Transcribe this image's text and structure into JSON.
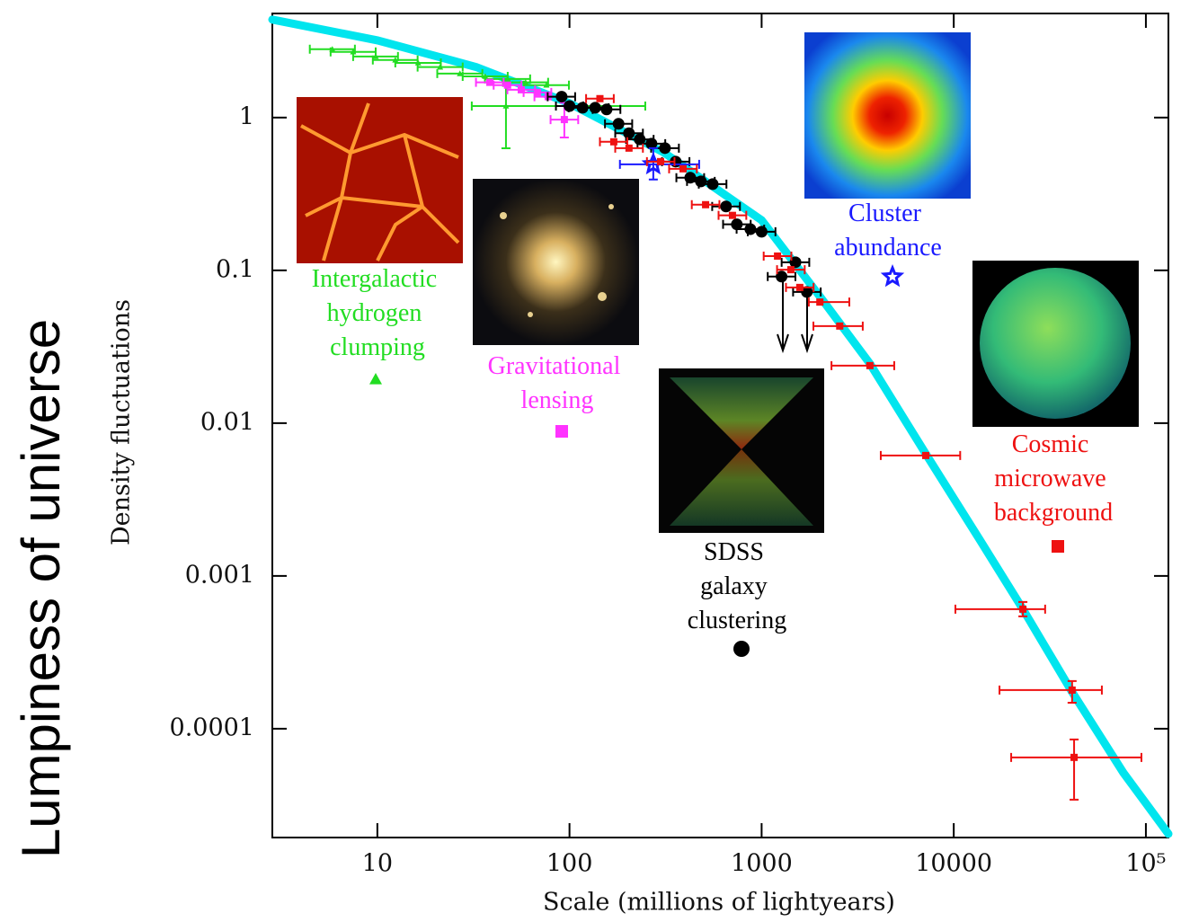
{
  "chart_data": {
    "type": "scatter",
    "side_title": "Lumpiness of universe",
    "y_label": "Density fluctuations",
    "x_label": "Scale (millions of lightyears)",
    "log_x": true,
    "log_y": true,
    "xlim": [
      2.84,
      131000
    ],
    "ylim": [
      1.94e-05,
      4.8
    ],
    "xticks": [
      10,
      100,
      1000,
      10000,
      {
        "value": 100000,
        "label": "10⁵"
      }
    ],
    "yticks": [
      0.0001,
      0.001,
      0.01,
      0.1,
      1
    ],
    "curve": {
      "color": "#00e5ee",
      "x": [
        2.84,
        10,
        32.7,
        100,
        310,
        1000,
        2010,
        3660,
        7150,
        13600,
        22900,
        41300,
        76400,
        131000
      ],
      "values": [
        4.38,
        3.2,
        2.14,
        1.24,
        0.59,
        0.213,
        0.0675,
        0.0245,
        0.0063,
        0.00174,
        0.000606,
        0.000174,
        5.15e-05,
        2.05e-05
      ]
    },
    "series": [
      {
        "name": "Intergalactic hydrogen clumping",
        "color": "#22dd22",
        "marker": "triangle",
        "x": [
          5.83,
          7.48,
          9.8,
          12.4,
          16.3,
          21.2,
          26.9,
          36.4,
          47.6,
          59.1,
          75.8,
          46.7
        ],
        "values": [
          2.8,
          2.69,
          2.51,
          2.38,
          2.28,
          2.14,
          1.94,
          1.86,
          1.79,
          1.7,
          1.63,
          1.19
        ],
        "x_low": [
          4.45,
          5.71,
          7.48,
          9.47,
          12.4,
          16.2,
          20.5,
          27.8,
          36.3,
          45.1,
          57.9,
          31
        ],
        "x_high": [
          7.64,
          9.8,
          12.8,
          16.2,
          21.4,
          27.8,
          35.2,
          47.7,
          62.4,
          77.4,
          99.3,
          248
        ],
        "y_low": [
          null,
          null,
          null,
          null,
          null,
          null,
          null,
          null,
          null,
          null,
          null,
          0.63
        ],
        "y_high": [
          null,
          null,
          null,
          null,
          null,
          null,
          null,
          null,
          null,
          null,
          null,
          1.74
        ]
      },
      {
        "name": "Gravitational lensing",
        "color": "#ff33ff",
        "marker": "square",
        "x": [
          38.5,
          47.6,
          56.1,
          68.1,
          77.5,
          94
        ],
        "values": [
          1.7,
          1.63,
          1.52,
          1.46,
          1.37,
          0.97
        ],
        "x_low": [
          32.6,
          40.3,
          47.5,
          57.7,
          65.7,
          79.7
        ],
        "x_high": [
          45.4,
          56.2,
          66.2,
          80.4,
          91.5,
          111
        ],
        "y_low": [
          null,
          null,
          null,
          null,
          null,
          0.74
        ],
        "y_high": [
          null,
          null,
          null,
          null,
          null,
          1.25
        ]
      },
      {
        "name": "SDSS galaxy clustering",
        "color": "#000000",
        "marker": "circle",
        "x": [
          91,
          100,
          117,
          136,
          156,
          180,
          204,
          232,
          267,
          314,
          357,
          425,
          483,
          556,
          653,
          743,
          874,
          1000,
          1270,
          1500,
          1720
        ],
        "values": [
          1.37,
          1.19,
          1.16,
          1.16,
          1.13,
          0.91,
          0.79,
          0.72,
          0.675,
          0.631,
          0.515,
          0.404,
          0.382,
          0.367,
          0.262,
          0.2,
          0.186,
          0.179,
          0.091,
          0.113,
          0.0722
        ],
        "x_low": [
          77,
          85,
          99,
          115,
          132,
          153,
          173,
          197,
          226,
          266,
          303,
          360,
          409,
          471,
          553,
          630,
          741,
          847,
          1076,
          1271,
          1458
        ],
        "x_high": [
          107,
          118,
          138,
          160,
          184,
          212,
          241,
          274,
          315,
          371,
          421,
          502,
          570,
          656,
          771,
          877,
          1031,
          1180,
          1499,
          1770,
          2030
        ]
      },
      {
        "name": "Cluster abundance",
        "color": "#1a1aff",
        "marker": "star",
        "x": [
          273
        ],
        "values": [
          0.494
        ],
        "x_low": [
          183
        ],
        "x_high": [
          473
        ],
        "y_low": [
          0.393
        ],
        "y_high": [
          0.631
        ]
      },
      {
        "name": "Cosmic microwave background",
        "color": "#ee1111",
        "marker": "square",
        "x": [
          144,
          170,
          204,
          298,
          390,
          511,
          705,
          1210,
          1420,
          1580,
          2010,
          2550,
          3660,
          7150,
          22900,
          41300,
          42300
        ],
        "values": [
          1.33,
          0.694,
          0.631,
          0.515,
          0.462,
          0.269,
          0.229,
          0.124,
          0.101,
          0.0773,
          0.062,
          0.0432,
          0.0238,
          0.00614,
          0.000606,
          0.000179,
          6.49e-05
        ],
        "x_low": [
          122,
          144,
          173,
          253,
          330,
          433,
          597,
          1025,
          1203,
          1339,
          1760,
          1860,
          2310,
          4170,
          10200,
          17300,
          19900
        ],
        "x_high": [
          170,
          200,
          241,
          352,
          460,
          603,
          832,
          1428,
          1676,
          1864,
          2860,
          3360,
          4900,
          10800,
          29900,
          59000,
          94800
        ],
        "y_low": [
          null,
          null,
          null,
          null,
          null,
          null,
          null,
          null,
          null,
          null,
          null,
          null,
          null,
          null,
          0.000544,
          0.000148,
          3.43e-05
        ],
        "y_high": [
          null,
          null,
          null,
          null,
          null,
          null,
          null,
          null,
          null,
          null,
          null,
          null,
          null,
          null,
          0.000675,
          0.000205,
          8.5e-05
        ]
      }
    ]
  }
}
